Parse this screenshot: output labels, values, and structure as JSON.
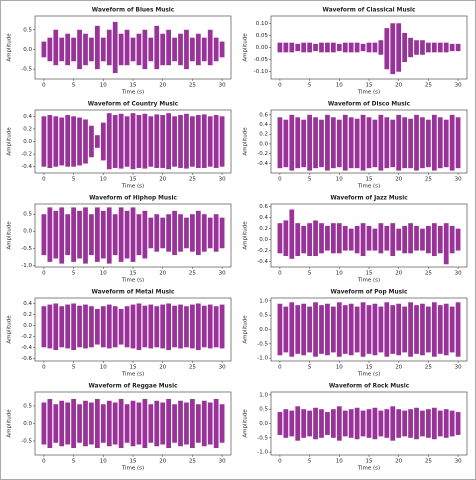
{
  "chart_data": [
    {
      "type": "area",
      "title": "Waveform of Blues Music",
      "xlabel": "Time (s)",
      "ylabel": "Amplitude",
      "color": "#800080",
      "x": [
        0,
        1,
        2,
        3,
        4,
        5,
        6,
        7,
        8,
        9,
        10,
        11,
        12,
        13,
        14,
        15,
        16,
        17,
        18,
        19,
        20,
        21,
        22,
        23,
        24,
        25,
        26,
        27,
        28,
        29,
        30
      ],
      "high": [
        0.2,
        0.3,
        0.5,
        0.3,
        0.4,
        0.3,
        0.5,
        0.4,
        0.3,
        0.6,
        0.3,
        0.5,
        0.7,
        0.4,
        0.5,
        0.3,
        0.4,
        0.5,
        0.3,
        0.6,
        0.4,
        0.5,
        0.3,
        0.4,
        0.5,
        0.3,
        0.4,
        0.3,
        0.5,
        0.3,
        0.2
      ],
      "low": [
        -0.2,
        -0.3,
        -0.4,
        -0.3,
        -0.4,
        -0.3,
        -0.5,
        -0.4,
        -0.3,
        -0.5,
        -0.3,
        -0.4,
        -0.6,
        -0.4,
        -0.4,
        -0.3,
        -0.4,
        -0.5,
        -0.3,
        -0.5,
        -0.4,
        -0.4,
        -0.3,
        -0.4,
        -0.5,
        -0.3,
        -0.4,
        -0.3,
        -0.4,
        -0.3,
        -0.2
      ],
      "xlim": [
        -1.5,
        31.5
      ],
      "xticks": [
        0,
        5,
        10,
        15,
        20,
        25,
        30
      ],
      "ylim": [
        -0.75,
        0.85
      ],
      "yticks": [
        -0.5,
        {
          "value": 0,
          "label": "0.0"
        },
        0.5
      ]
    },
    {
      "type": "area",
      "title": "Waveform of Classical Music",
      "xlabel": "Time (s)",
      "ylabel": "Amplitude",
      "color": "#800080",
      "x": [
        0,
        1,
        2,
        3,
        4,
        5,
        6,
        7,
        8,
        9,
        10,
        11,
        12,
        13,
        14,
        15,
        16,
        17,
        18,
        19,
        20,
        21,
        22,
        23,
        24,
        25,
        26,
        27,
        28,
        29,
        30
      ],
      "high": [
        0.02,
        0.02,
        0.02,
        0.015,
        0.02,
        0.02,
        0.015,
        0.02,
        0.02,
        0.02,
        0.015,
        0.02,
        0.02,
        0.02,
        0.015,
        0.02,
        0.02,
        0.03,
        0.08,
        0.1,
        0.1,
        0.06,
        0.04,
        0.03,
        0.03,
        0.02,
        0.02,
        0.02,
        0.02,
        0.015,
        0.015
      ],
      "low": [
        -0.02,
        -0.02,
        -0.02,
        -0.015,
        -0.02,
        -0.02,
        -0.015,
        -0.02,
        -0.02,
        -0.02,
        -0.015,
        -0.02,
        -0.02,
        -0.02,
        -0.015,
        -0.02,
        -0.02,
        -0.03,
        -0.09,
        -0.11,
        -0.1,
        -0.06,
        -0.04,
        -0.03,
        -0.03,
        -0.02,
        -0.02,
        -0.02,
        -0.02,
        -0.015,
        -0.015
      ],
      "xlim": [
        -1.5,
        31.5
      ],
      "xticks": [
        0,
        5,
        10,
        15,
        20,
        25,
        30
      ],
      "ylim": [
        -0.13,
        0.13
      ],
      "yticks": [
        {
          "value": -0.1,
          "label": "-0.10"
        },
        -0.05,
        {
          "value": 0,
          "label": "0.00"
        },
        0.05,
        {
          "value": 0.1,
          "label": "0.10"
        }
      ]
    },
    {
      "type": "area",
      "title": "Waveform of Country Music",
      "xlabel": "Time (s)",
      "ylabel": "Amplitude",
      "color": "#800080",
      "x": [
        0,
        1,
        2,
        3,
        4,
        5,
        6,
        7,
        8,
        9,
        10,
        11,
        12,
        13,
        14,
        15,
        16,
        17,
        18,
        19,
        20,
        21,
        22,
        23,
        24,
        25,
        26,
        27,
        28,
        29,
        30
      ],
      "high": [
        0.4,
        0.42,
        0.4,
        0.38,
        0.42,
        0.4,
        0.38,
        0.35,
        0.25,
        0.1,
        0.3,
        0.45,
        0.42,
        0.44,
        0.4,
        0.45,
        0.42,
        0.44,
        0.4,
        0.43,
        0.42,
        0.45,
        0.4,
        0.42,
        0.44,
        0.4,
        0.42,
        0.43,
        0.4,
        0.42,
        0.4
      ],
      "low": [
        -0.4,
        -0.42,
        -0.4,
        -0.38,
        -0.4,
        -0.4,
        -0.38,
        -0.35,
        -0.25,
        -0.1,
        -0.3,
        -0.44,
        -0.42,
        -0.43,
        -0.4,
        -0.44,
        -0.42,
        -0.43,
        -0.4,
        -0.42,
        -0.42,
        -0.44,
        -0.4,
        -0.42,
        -0.43,
        -0.4,
        -0.42,
        -0.42,
        -0.4,
        -0.42,
        -0.4
      ],
      "xlim": [
        -1.5,
        31.5
      ],
      "xticks": [
        0,
        5,
        10,
        15,
        20,
        25,
        30
      ],
      "ylim": [
        -0.5,
        0.5
      ],
      "yticks": [
        -0.4,
        -0.2,
        {
          "value": 0,
          "label": "0.0"
        },
        0.2,
        0.4
      ]
    },
    {
      "type": "area",
      "title": "Waveform of Disco Music",
      "xlabel": "Time (s)",
      "ylabel": "Amplitude",
      "color": "#800080",
      "x": [
        0,
        1,
        2,
        3,
        4,
        5,
        6,
        7,
        8,
        9,
        10,
        11,
        12,
        13,
        14,
        15,
        16,
        17,
        18,
        19,
        20,
        21,
        22,
        23,
        24,
        25,
        26,
        27,
        28,
        29,
        30
      ],
      "high": [
        0.55,
        0.5,
        0.6,
        0.55,
        0.5,
        0.6,
        0.55,
        0.5,
        0.6,
        0.55,
        0.5,
        0.6,
        0.55,
        0.52,
        0.6,
        0.55,
        0.5,
        0.6,
        0.55,
        0.5,
        0.6,
        0.55,
        0.52,
        0.6,
        0.55,
        0.5,
        0.6,
        0.55,
        0.5,
        0.6,
        0.55
      ],
      "low": [
        -0.5,
        -0.48,
        -0.55,
        -0.5,
        -0.48,
        -0.55,
        -0.5,
        -0.48,
        -0.55,
        -0.5,
        -0.48,
        -0.55,
        -0.5,
        -0.5,
        -0.55,
        -0.5,
        -0.48,
        -0.55,
        -0.5,
        -0.48,
        -0.55,
        -0.5,
        -0.5,
        -0.55,
        -0.5,
        -0.48,
        -0.55,
        -0.5,
        -0.48,
        -0.55,
        -0.5
      ],
      "xlim": [
        -1.5,
        31.5
      ],
      "xticks": [
        0,
        5,
        10,
        15,
        20,
        25,
        30
      ],
      "ylim": [
        -0.6,
        0.7
      ],
      "yticks": [
        -0.4,
        -0.2,
        {
          "value": 0,
          "label": "0.0"
        },
        0.2,
        0.4,
        0.6
      ]
    },
    {
      "type": "area",
      "title": "Waveform of Hiphop Music",
      "xlabel": "Time (s)",
      "ylabel": "Amplitude",
      "color": "#800080",
      "x": [
        0,
        1,
        2,
        3,
        4,
        5,
        6,
        7,
        8,
        9,
        10,
        11,
        12,
        13,
        14,
        15,
        16,
        17,
        18,
        19,
        20,
        21,
        22,
        23,
        24,
        25,
        26,
        27,
        28,
        29,
        30
      ],
      "high": [
        0.5,
        0.7,
        0.6,
        0.7,
        0.5,
        0.7,
        0.6,
        0.7,
        0.5,
        0.7,
        0.6,
        0.7,
        0.5,
        0.7,
        0.6,
        0.7,
        0.5,
        0.6,
        0.4,
        0.5,
        0.4,
        0.5,
        0.6,
        0.5,
        0.4,
        0.5,
        0.6,
        0.5,
        0.4,
        0.5,
        0.4
      ],
      "low": [
        -0.7,
        -0.9,
        -0.8,
        -0.95,
        -0.7,
        -0.9,
        -0.8,
        -0.95,
        -0.7,
        -0.9,
        -0.8,
        -0.95,
        -0.7,
        -0.9,
        -0.8,
        -0.9,
        -0.7,
        -0.8,
        -0.5,
        -0.6,
        -0.5,
        -0.6,
        -0.7,
        -0.6,
        -0.5,
        -0.6,
        -0.7,
        -0.6,
        -0.5,
        -0.6,
        -0.5
      ],
      "xlim": [
        -1.5,
        31.5
      ],
      "xticks": [
        0,
        5,
        10,
        15,
        20,
        25,
        30
      ],
      "ylim": [
        -1.05,
        0.8
      ],
      "yticks": [
        {
          "value": -1,
          "label": "-1.0"
        },
        -0.5,
        {
          "value": 0,
          "label": "0.0"
        },
        0.5
      ]
    },
    {
      "type": "area",
      "title": "Waveform of Jazz Music",
      "xlabel": "Time (s)",
      "ylabel": "Amplitude",
      "color": "#800080",
      "x": [
        0,
        1,
        2,
        3,
        4,
        5,
        6,
        7,
        8,
        9,
        10,
        11,
        12,
        13,
        14,
        15,
        16,
        17,
        18,
        19,
        20,
        21,
        22,
        23,
        24,
        25,
        26,
        27,
        28,
        29,
        30
      ],
      "high": [
        0.3,
        0.35,
        0.55,
        0.3,
        0.25,
        0.3,
        0.35,
        0.3,
        0.25,
        0.3,
        0.3,
        0.25,
        0.2,
        0.25,
        0.3,
        0.25,
        0.2,
        0.3,
        0.25,
        0.3,
        0.2,
        0.25,
        0.3,
        0.25,
        0.2,
        0.25,
        0.3,
        0.25,
        0.3,
        0.25,
        0.2
      ],
      "low": [
        -0.25,
        -0.3,
        -0.35,
        -0.3,
        -0.25,
        -0.3,
        -0.3,
        -0.25,
        -0.2,
        -0.25,
        -0.25,
        -0.2,
        -0.2,
        -0.25,
        -0.3,
        -0.2,
        -0.2,
        -0.25,
        -0.2,
        -0.3,
        -0.2,
        -0.25,
        -0.25,
        -0.2,
        -0.2,
        -0.25,
        -0.3,
        -0.25,
        -0.45,
        -0.25,
        -0.2
      ],
      "xlim": [
        -1.5,
        31.5
      ],
      "xticks": [
        0,
        5,
        10,
        15,
        20,
        25,
        30
      ],
      "ylim": [
        -0.5,
        0.65
      ],
      "yticks": [
        -0.4,
        -0.2,
        {
          "value": 0,
          "label": "0.0"
        },
        0.2,
        0.4,
        0.6
      ]
    },
    {
      "type": "area",
      "title": "Waveform of Metal Music",
      "xlabel": "Time (s)",
      "ylabel": "Amplitude",
      "color": "#800080",
      "x": [
        0,
        1,
        2,
        3,
        4,
        5,
        6,
        7,
        8,
        9,
        10,
        11,
        12,
        13,
        14,
        15,
        16,
        17,
        18,
        19,
        20,
        21,
        22,
        23,
        24,
        25,
        26,
        27,
        28,
        29,
        30
      ],
      "high": [
        0.35,
        0.38,
        0.4,
        0.35,
        0.38,
        0.4,
        0.36,
        0.38,
        0.35,
        0.3,
        0.35,
        0.38,
        0.35,
        0.3,
        0.35,
        0.38,
        0.4,
        0.36,
        0.38,
        0.35,
        0.38,
        0.4,
        0.36,
        0.38,
        0.35,
        0.38,
        0.4,
        0.36,
        0.38,
        0.35,
        0.38
      ],
      "low": [
        -0.4,
        -0.42,
        -0.45,
        -0.4,
        -0.42,
        -0.45,
        -0.4,
        -0.42,
        -0.4,
        -0.35,
        -0.4,
        -0.42,
        -0.4,
        -0.35,
        -0.4,
        -0.42,
        -0.45,
        -0.4,
        -0.42,
        -0.4,
        -0.42,
        -0.45,
        -0.4,
        -0.42,
        -0.4,
        -0.42,
        -0.45,
        -0.4,
        -0.42,
        -0.4,
        -0.42
      ],
      "xlim": [
        -1.5,
        31.5
      ],
      "xticks": [
        0,
        5,
        10,
        15,
        20,
        25,
        30
      ],
      "ylim": [
        -0.65,
        0.5
      ],
      "yticks": [
        -0.6,
        -0.4,
        -0.2,
        {
          "value": 0,
          "label": "0.0"
        },
        0.2,
        0.4
      ]
    },
    {
      "type": "area",
      "title": "Waveform of Pop Music",
      "xlabel": "Time (s)",
      "ylabel": "Amplitude",
      "color": "#800080",
      "x": [
        0,
        1,
        2,
        3,
        4,
        5,
        6,
        7,
        8,
        9,
        10,
        11,
        12,
        13,
        14,
        15,
        16,
        17,
        18,
        19,
        20,
        21,
        22,
        23,
        24,
        25,
        26,
        27,
        28,
        29,
        30
      ],
      "high": [
        0.9,
        0.8,
        0.95,
        0.85,
        0.9,
        0.8,
        0.95,
        0.85,
        0.9,
        0.8,
        0.95,
        0.85,
        0.9,
        0.8,
        0.95,
        0.85,
        0.9,
        0.8,
        0.95,
        0.85,
        0.9,
        0.8,
        0.95,
        0.85,
        0.9,
        0.8,
        0.95,
        0.85,
        0.9,
        0.8,
        0.95
      ],
      "low": [
        -0.9,
        -0.8,
        -0.95,
        -0.85,
        -0.9,
        -0.8,
        -0.95,
        -0.85,
        -0.9,
        -0.8,
        -0.95,
        -0.85,
        -0.9,
        -0.8,
        -0.95,
        -0.85,
        -0.9,
        -0.8,
        -0.95,
        -0.85,
        -0.9,
        -0.8,
        -0.95,
        -0.85,
        -0.9,
        -0.8,
        -0.95,
        -0.85,
        -0.9,
        -0.8,
        -0.95
      ],
      "xlim": [
        -1.5,
        31.5
      ],
      "xticks": [
        0,
        5,
        10,
        15,
        20,
        25,
        30
      ],
      "ylim": [
        -1.1,
        1.1
      ],
      "yticks": [
        {
          "value": -1,
          "label": "-1.0"
        },
        -0.5,
        {
          "value": 0,
          "label": "0.0"
        },
        0.5,
        {
          "value": 1,
          "label": "1.0"
        }
      ]
    },
    {
      "type": "area",
      "title": "Waveform of Reggae Music",
      "xlabel": "Time (s)",
      "ylabel": "Amplitude",
      "color": "#800080",
      "x": [
        0,
        1,
        2,
        3,
        4,
        5,
        6,
        7,
        8,
        9,
        10,
        11,
        12,
        13,
        14,
        15,
        16,
        17,
        18,
        19,
        20,
        21,
        22,
        23,
        24,
        25,
        26,
        27,
        28,
        29,
        30
      ],
      "high": [
        0.6,
        0.7,
        0.55,
        0.65,
        0.6,
        0.7,
        0.55,
        0.65,
        0.6,
        0.7,
        0.55,
        0.65,
        0.6,
        0.7,
        0.55,
        0.65,
        0.6,
        0.7,
        0.55,
        0.65,
        0.6,
        0.7,
        0.55,
        0.65,
        0.6,
        0.7,
        0.55,
        0.65,
        0.6,
        0.7,
        0.55
      ],
      "low": [
        -0.6,
        -0.7,
        -0.55,
        -0.65,
        -0.6,
        -0.7,
        -0.55,
        -0.65,
        -0.6,
        -0.7,
        -0.55,
        -0.65,
        -0.6,
        -0.7,
        -0.55,
        -0.65,
        -0.6,
        -0.7,
        -0.55,
        -0.65,
        -0.6,
        -0.7,
        -0.55,
        -0.65,
        -0.6,
        -0.7,
        -0.55,
        -0.65,
        -0.6,
        -0.7,
        -0.55
      ],
      "xlim": [
        -1.5,
        31.5
      ],
      "xticks": [
        0,
        5,
        10,
        15,
        20,
        25,
        30
      ],
      "ylim": [
        -0.9,
        0.9
      ],
      "yticks": [
        -0.5,
        {
          "value": 0,
          "label": "0.0"
        },
        0.5
      ]
    },
    {
      "type": "area",
      "title": "Waveform of Rock Music",
      "xlabel": "Time (s)",
      "ylabel": "Amplitude",
      "color": "#800080",
      "x": [
        0,
        1,
        2,
        3,
        4,
        5,
        6,
        7,
        8,
        9,
        10,
        11,
        12,
        13,
        14,
        15,
        16,
        17,
        18,
        19,
        20,
        21,
        22,
        23,
        24,
        25,
        26,
        27,
        28,
        29,
        30
      ],
      "high": [
        0.4,
        0.5,
        0.45,
        0.6,
        0.5,
        0.45,
        0.55,
        0.5,
        0.4,
        0.5,
        0.6,
        0.45,
        0.5,
        0.55,
        0.45,
        0.5,
        0.55,
        0.45,
        0.5,
        0.6,
        0.5,
        0.45,
        0.5,
        0.55,
        0.45,
        0.5,
        0.55,
        0.45,
        0.5,
        0.45,
        0.4
      ],
      "low": [
        -0.4,
        -0.5,
        -0.45,
        -0.6,
        -0.5,
        -0.45,
        -0.55,
        -0.5,
        -0.4,
        -0.5,
        -0.6,
        -0.45,
        -0.5,
        -0.55,
        -0.45,
        -0.5,
        -0.55,
        -0.45,
        -0.5,
        -0.6,
        -0.5,
        -0.45,
        -0.5,
        -0.55,
        -0.45,
        -0.5,
        -0.55,
        -0.45,
        -0.5,
        -0.45,
        -0.4
      ],
      "xlim": [
        -1.5,
        31.5
      ],
      "xticks": [
        0,
        5,
        10,
        15,
        20,
        25,
        30
      ],
      "ylim": [
        -1.1,
        1.1
      ],
      "yticks": [
        {
          "value": -1,
          "label": "-1.0"
        },
        -0.5,
        {
          "value": 0,
          "label": "0.0"
        },
        0.5,
        {
          "value": 1,
          "label": "1.0"
        }
      ]
    }
  ]
}
